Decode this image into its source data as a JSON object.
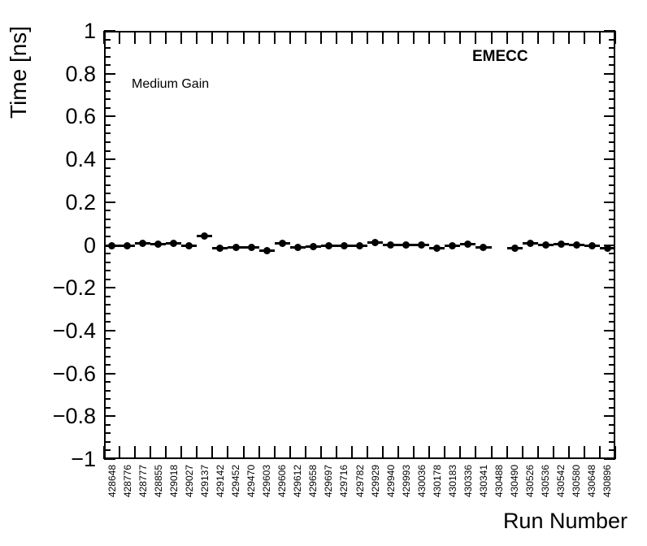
{
  "labels": {
    "y_axis_title": "Time [ns]",
    "x_axis_title": "Run Number",
    "gain_label": "Medium Gain",
    "region_label": "EMECC"
  },
  "chart_data": {
    "type": "scatter",
    "title": "",
    "xlabel": "Run Number",
    "ylabel": "Time [ns]",
    "annotations": [
      "Medium Gain",
      "EMECC"
    ],
    "ylim": [
      -1,
      1
    ],
    "y_major_tick_step": 0.2,
    "y_minor_tick_step": 0.04,
    "y_tick_labels": [
      "1",
      "0.8",
      "0.6",
      "0.4",
      "0.2",
      "0",
      "−0.2",
      "−0.4",
      "−0.6",
      "−0.8",
      "−1"
    ],
    "grid": false,
    "legend": "none",
    "marker": "filled-circle",
    "marker_color": "#000000",
    "x_error": "half-bin-width",
    "categories": [
      "428648",
      "428776",
      "428777",
      "428855",
      "429018",
      "429027",
      "429137",
      "429142",
      "429452",
      "429470",
      "429603",
      "429606",
      "429612",
      "429658",
      "429697",
      "429716",
      "429782",
      "429929",
      "429940",
      "429993",
      "430036",
      "430178",
      "430183",
      "430336",
      "430341",
      "430488",
      "430490",
      "430526",
      "430536",
      "430542",
      "430580",
      "430648",
      "430896"
    ],
    "values": [
      -0.003,
      -0.002,
      0.008,
      0.002,
      0.008,
      -0.002,
      0.042,
      -0.017,
      -0.01,
      -0.011,
      -0.028,
      0.008,
      -0.011,
      -0.006,
      -0.005,
      -0.003,
      -0.005,
      0.011,
      0.001,
      -0.001,
      -0.001,
      -0.014,
      -0.005,
      0.004,
      -0.011,
      null,
      -0.014,
      0.006,
      0.0,
      0.002,
      0.0,
      -0.002,
      -0.015
    ]
  }
}
